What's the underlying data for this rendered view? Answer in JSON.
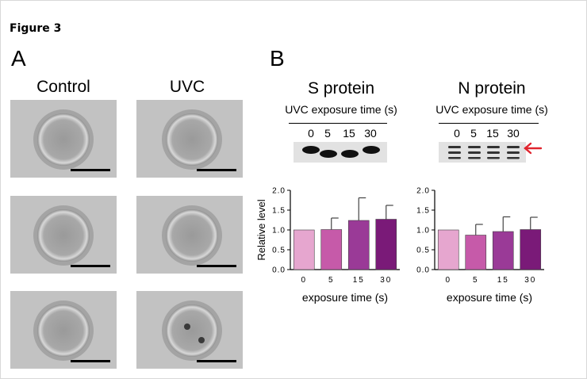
{
  "figure_title": "Figure 3",
  "panel_a": {
    "letter": "A",
    "columns": [
      "Control",
      "UVC"
    ]
  },
  "panel_b": {
    "letter": "B",
    "blots": [
      {
        "title": "S protein",
        "exposure_label": "UVC exposure time (s)",
        "lanes": [
          "0",
          "5",
          "15",
          "30"
        ]
      },
      {
        "title": "N protein",
        "exposure_label": "UVC exposure time (s)",
        "lanes": [
          "0",
          "5",
          "15",
          "30"
        ]
      }
    ],
    "arrow_color": "#e0242e"
  },
  "chart_data": [
    {
      "type": "bar",
      "categories": [
        "0",
        "5",
        "15",
        "30"
      ],
      "values": [
        1.0,
        1.01,
        1.24,
        1.27
      ],
      "errors": [
        0,
        0.29,
        0.57,
        0.35
      ],
      "ylim": [
        0,
        2.0
      ],
      "yticks": [
        "0.0",
        "0.5",
        "1.0",
        "1.5",
        "2.0"
      ],
      "ylabel": "Relative level",
      "xlabel": "exposure time  (s)",
      "colors": [
        "#e6a6cf",
        "#c65aa9",
        "#9a3a97",
        "#7a1a78"
      ]
    },
    {
      "type": "bar",
      "categories": [
        "0",
        "5",
        "15",
        "30"
      ],
      "values": [
        1.0,
        0.87,
        0.96,
        1.01
      ],
      "errors": [
        0,
        0.27,
        0.37,
        0.31
      ],
      "ylim": [
        0,
        2.0
      ],
      "yticks": [
        "0.0",
        "0.5",
        "1.0",
        "1.5",
        "2.0"
      ],
      "ylabel": "",
      "xlabel": "exposure time  (s)",
      "colors": [
        "#e6a6cf",
        "#c65aa9",
        "#9a3a97",
        "#7a1a78"
      ]
    }
  ]
}
